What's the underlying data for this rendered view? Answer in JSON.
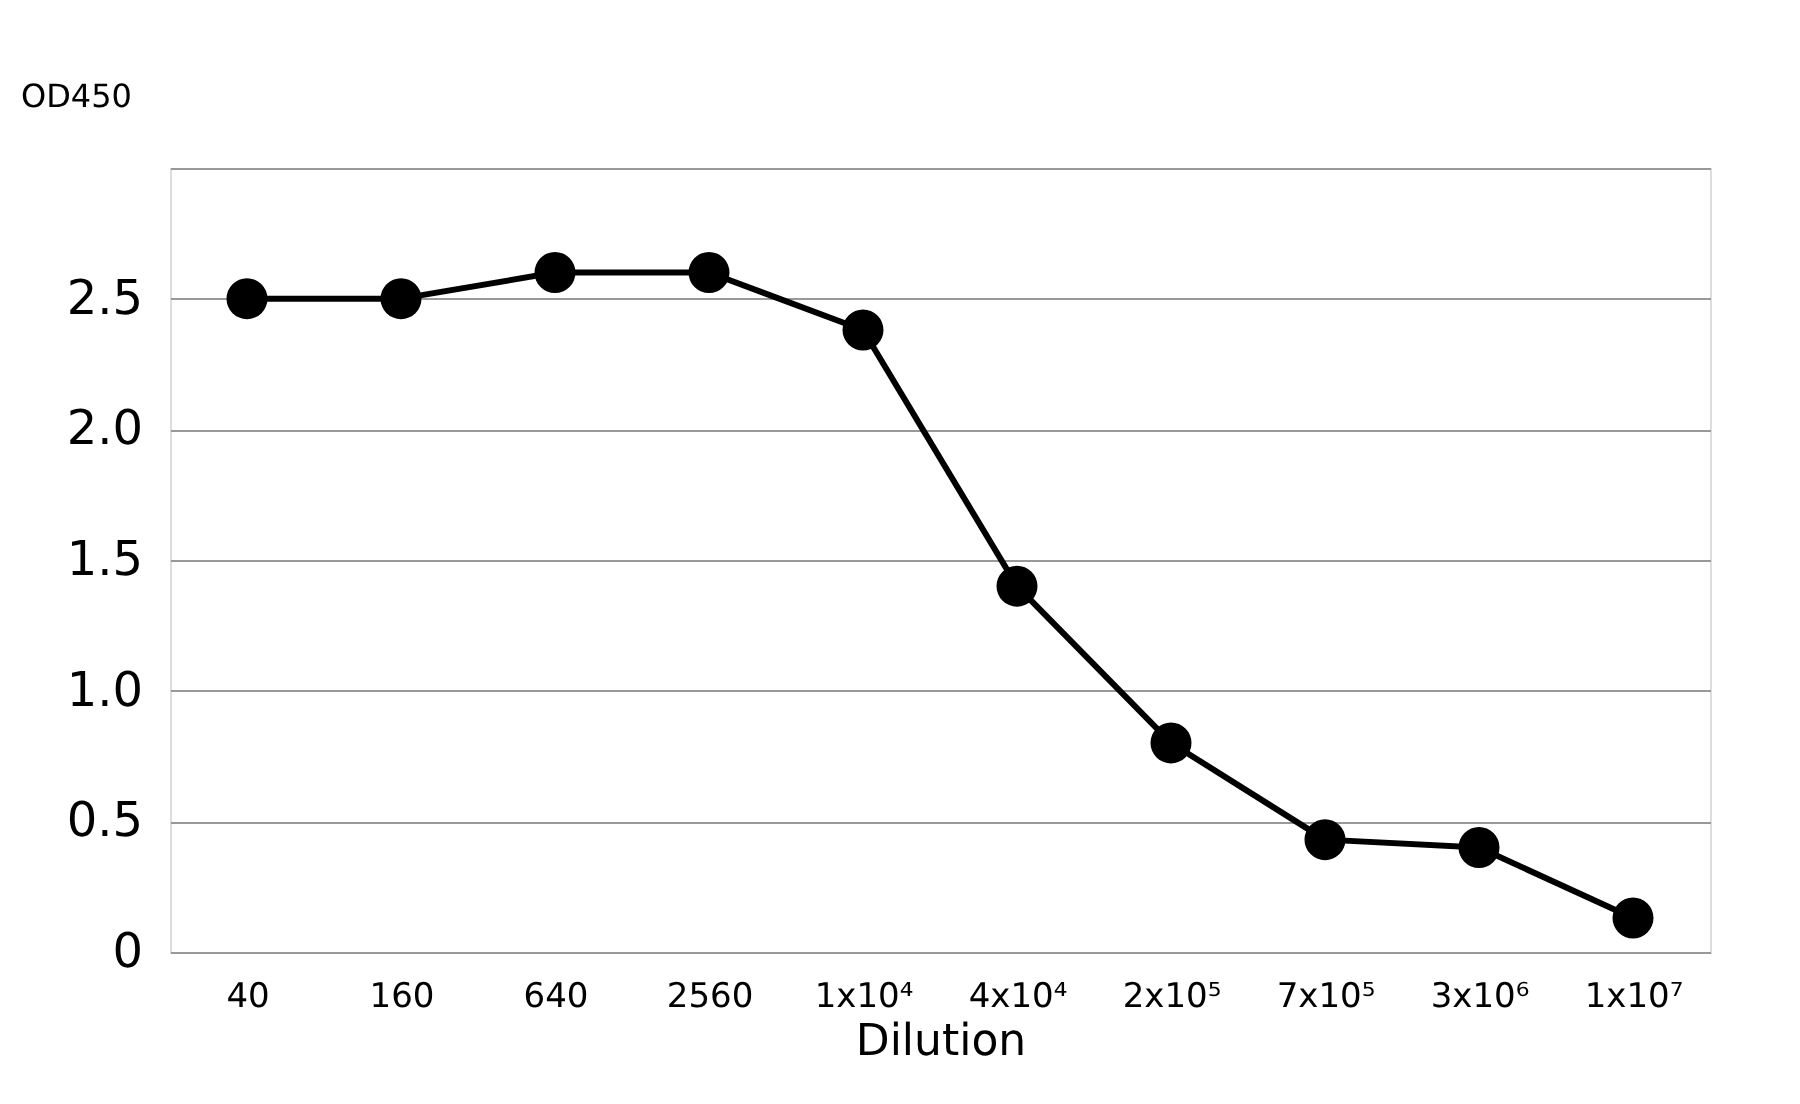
{
  "chart_data": {
    "type": "line",
    "xlabel": "Dilution",
    "ylabel": "OD450",
    "categories": [
      "40",
      "160",
      "640",
      "2560",
      "1x10⁴",
      "4x10⁴",
      "2x10⁵",
      "7x10⁵",
      "3x10⁶",
      "1x10⁷"
    ],
    "series": [
      {
        "color": "#000000",
        "values": [
          2.5,
          2.5,
          2.6,
          2.6,
          2.38,
          1.4,
          0.8,
          0.43,
          0.4,
          0.13
        ]
      }
    ],
    "ylim": [
      0,
      3
    ],
    "yticks": [
      {
        "value": 0,
        "label": "0"
      },
      0.5,
      {
        "value": 1,
        "label": "1.0"
      },
      1.5,
      {
        "value": 2,
        "label": "2.0"
      },
      2.5,
      {
        "value": 3,
        "label": null
      }
    ],
    "grid": "y",
    "marker": "circle",
    "line_style": "solid"
  }
}
